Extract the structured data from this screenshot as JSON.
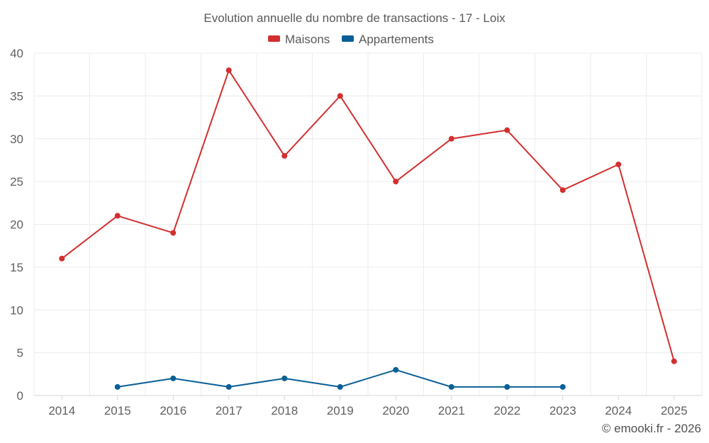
{
  "chart_data": {
    "type": "line",
    "title": "Evolution annuelle du nombre de transactions - 17 - Loix",
    "categories": [
      "2014",
      "2015",
      "2016",
      "2017",
      "2018",
      "2019",
      "2020",
      "2021",
      "2022",
      "2023",
      "2024",
      "2025"
    ],
    "series": [
      {
        "name": "Maisons",
        "color": "#d32f2f",
        "values": [
          16,
          21,
          19,
          38,
          28,
          35,
          25,
          30,
          31,
          24,
          27,
          4
        ]
      },
      {
        "name": "Appartements",
        "color": "#0a5f97",
        "values": [
          null,
          1,
          2,
          1,
          2,
          1,
          3,
          1,
          1,
          1,
          null,
          null
        ]
      }
    ],
    "yticks": [
      "0",
      "5",
      "10",
      "15",
      "20",
      "25",
      "30",
      "35",
      "40"
    ],
    "ylim": [
      0,
      40
    ],
    "xlabel": "",
    "ylabel": "",
    "grid": true,
    "legend_position": "top-center"
  },
  "credit": "© emooki.fr - 2026"
}
